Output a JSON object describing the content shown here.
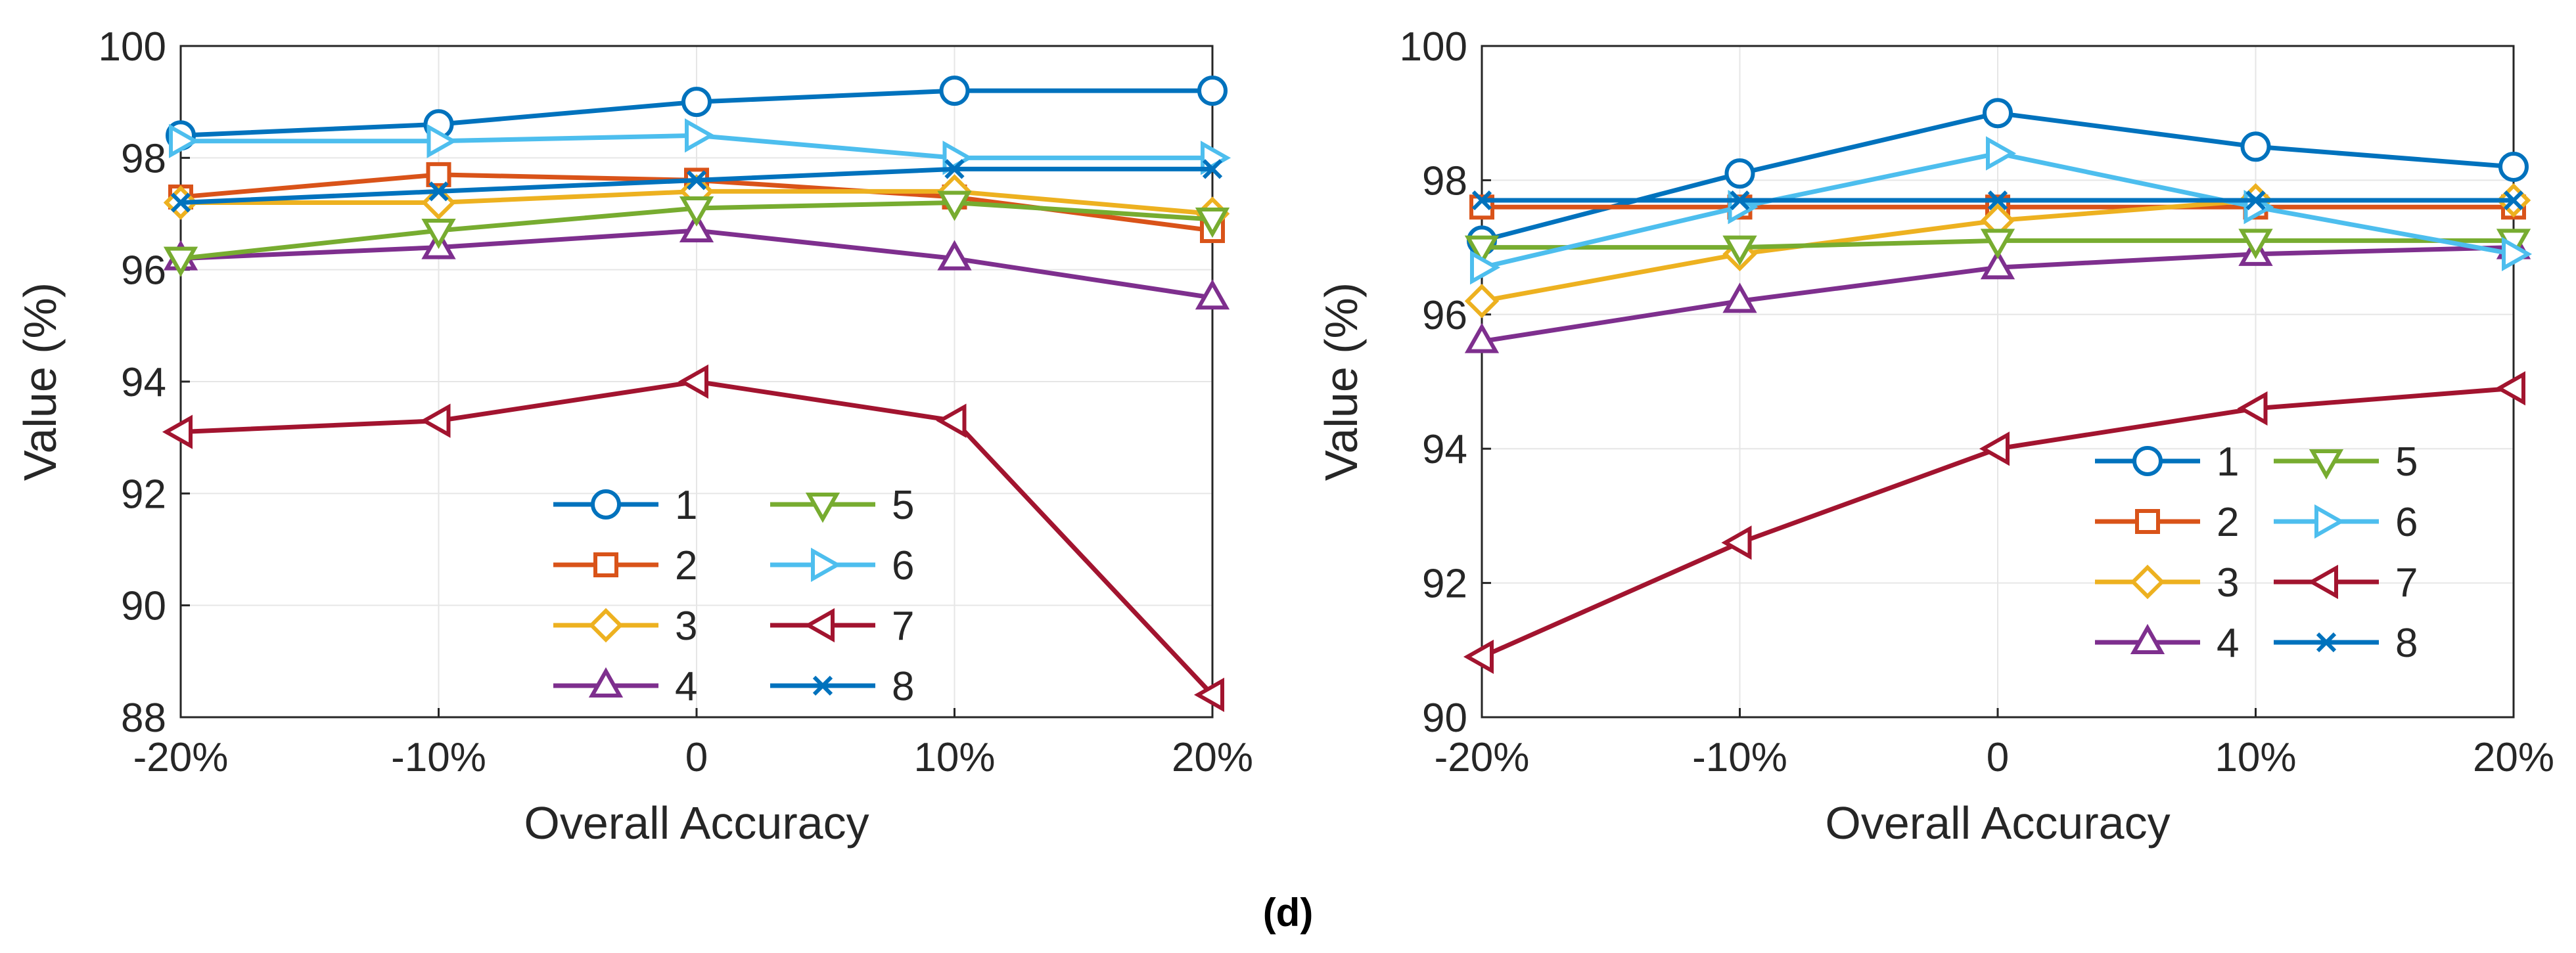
{
  "caption": "(d)",
  "chart_data": [
    {
      "type": "line",
      "xlabel": "Overall Accuracy",
      "ylabel": "Value (%)",
      "categories": [
        "-20%",
        "-10%",
        "0",
        "10%",
        "20%"
      ],
      "ylim": [
        88,
        100
      ],
      "yticks": [
        88,
        90,
        92,
        94,
        96,
        98,
        100
      ],
      "grid": true,
      "legend": {
        "placement": "bottom-center",
        "columns": 2
      },
      "series": [
        {
          "name": "1",
          "color": "#0072BD",
          "marker": "circle",
          "values": [
            98.4,
            98.6,
            99.0,
            99.2,
            99.2
          ]
        },
        {
          "name": "2",
          "color": "#D95319",
          "marker": "square",
          "values": [
            97.3,
            97.7,
            97.6,
            97.3,
            96.7
          ]
        },
        {
          "name": "3",
          "color": "#EDB120",
          "marker": "diamond",
          "values": [
            97.2,
            97.2,
            97.4,
            97.4,
            97.0
          ]
        },
        {
          "name": "4",
          "color": "#7E2F8E",
          "marker": "triangle-up",
          "values": [
            96.2,
            96.4,
            96.7,
            96.2,
            95.5
          ]
        },
        {
          "name": "5",
          "color": "#77AC30",
          "marker": "triangle-down",
          "values": [
            96.2,
            96.7,
            97.1,
            97.2,
            96.9
          ]
        },
        {
          "name": "6",
          "color": "#4DBEEE",
          "marker": "triangle-right",
          "values": [
            98.3,
            98.3,
            98.4,
            98.0,
            98.0
          ]
        },
        {
          "name": "7",
          "color": "#A2142F",
          "marker": "triangle-left",
          "values": [
            93.1,
            93.3,
            94.0,
            93.3,
            88.4
          ]
        },
        {
          "name": "8",
          "color": "#0072BD",
          "marker": "x",
          "values": [
            97.2,
            97.4,
            97.6,
            97.8,
            97.8
          ]
        }
      ]
    },
    {
      "type": "line",
      "xlabel": "Overall Accuracy",
      "ylabel": "Value (%)",
      "categories": [
        "-20%",
        "-10%",
        "0",
        "10%",
        "20%"
      ],
      "ylim": [
        90,
        100
      ],
      "yticks": [
        90,
        92,
        94,
        96,
        98,
        100
      ],
      "grid": true,
      "legend": {
        "placement": "middle-right",
        "columns": 2
      },
      "series": [
        {
          "name": "1",
          "color": "#0072BD",
          "marker": "circle",
          "values": [
            97.1,
            98.1,
            99.0,
            98.5,
            98.2
          ]
        },
        {
          "name": "2",
          "color": "#D95319",
          "marker": "square",
          "values": [
            97.6,
            97.6,
            97.6,
            97.6,
            97.6
          ]
        },
        {
          "name": "3",
          "color": "#EDB120",
          "marker": "diamond",
          "values": [
            96.2,
            96.9,
            97.4,
            97.7,
            97.7
          ]
        },
        {
          "name": "4",
          "color": "#7E2F8E",
          "marker": "triangle-up",
          "values": [
            95.6,
            96.2,
            96.7,
            96.9,
            97.0
          ]
        },
        {
          "name": "5",
          "color": "#77AC30",
          "marker": "triangle-down",
          "values": [
            97.0,
            97.0,
            97.1,
            97.1,
            97.1
          ]
        },
        {
          "name": "6",
          "color": "#4DBEEE",
          "marker": "triangle-right",
          "values": [
            96.7,
            97.6,
            98.4,
            97.6,
            96.9
          ]
        },
        {
          "name": "7",
          "color": "#A2142F",
          "marker": "triangle-left",
          "values": [
            90.9,
            92.6,
            94.0,
            94.6,
            94.9
          ]
        },
        {
          "name": "8",
          "color": "#0072BD",
          "marker": "x",
          "values": [
            97.7,
            97.7,
            97.7,
            97.7,
            97.7
          ]
        }
      ]
    }
  ]
}
